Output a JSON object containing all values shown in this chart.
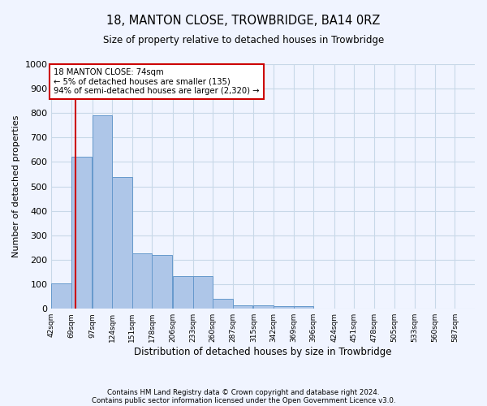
{
  "title1": "18, MANTON CLOSE, TROWBRIDGE, BA14 0RZ",
  "title2": "Size of property relative to detached houses in Trowbridge",
  "xlabel": "Distribution of detached houses by size in Trowbridge",
  "ylabel": "Number of detached properties",
  "annotation_line1": "18 MANTON CLOSE: 74sqm",
  "annotation_line2": "← 5% of detached houses are smaller (135)",
  "annotation_line3": "94% of semi-detached houses are larger (2,320) →",
  "property_size_sqm": 74,
  "footer1": "Contains HM Land Registry data © Crown copyright and database right 2024.",
  "footer2": "Contains public sector information licensed under the Open Government Licence v3.0.",
  "bin_labels": [
    "42sqm",
    "69sqm",
    "97sqm",
    "124sqm",
    "151sqm",
    "178sqm",
    "206sqm",
    "233sqm",
    "260sqm",
    "287sqm",
    "315sqm",
    "342sqm",
    "369sqm",
    "396sqm",
    "424sqm",
    "451sqm",
    "478sqm",
    "505sqm",
    "533sqm",
    "560sqm",
    "587sqm"
  ],
  "bin_edges": [
    42,
    69,
    97,
    124,
    151,
    178,
    206,
    233,
    260,
    287,
    315,
    342,
    369,
    396,
    424,
    451,
    478,
    505,
    533,
    560,
    587
  ],
  "bar_heights": [
    105,
    620,
    790,
    540,
    225,
    220,
    135,
    135,
    40,
    15,
    15,
    10,
    10,
    0,
    0,
    0,
    0,
    0,
    0,
    0
  ],
  "bar_color": "#aec6e8",
  "bar_edge_color": "#6699cc",
  "marker_color": "#cc0000",
  "ylim": [
    0,
    1000
  ],
  "yticks": [
    0,
    100,
    200,
    300,
    400,
    500,
    600,
    700,
    800,
    900,
    1000
  ],
  "annotation_box_color": "#ffffff",
  "annotation_box_edge": "#cc0000",
  "grid_color": "#c8d8e8",
  "bg_color": "#f0f4ff"
}
